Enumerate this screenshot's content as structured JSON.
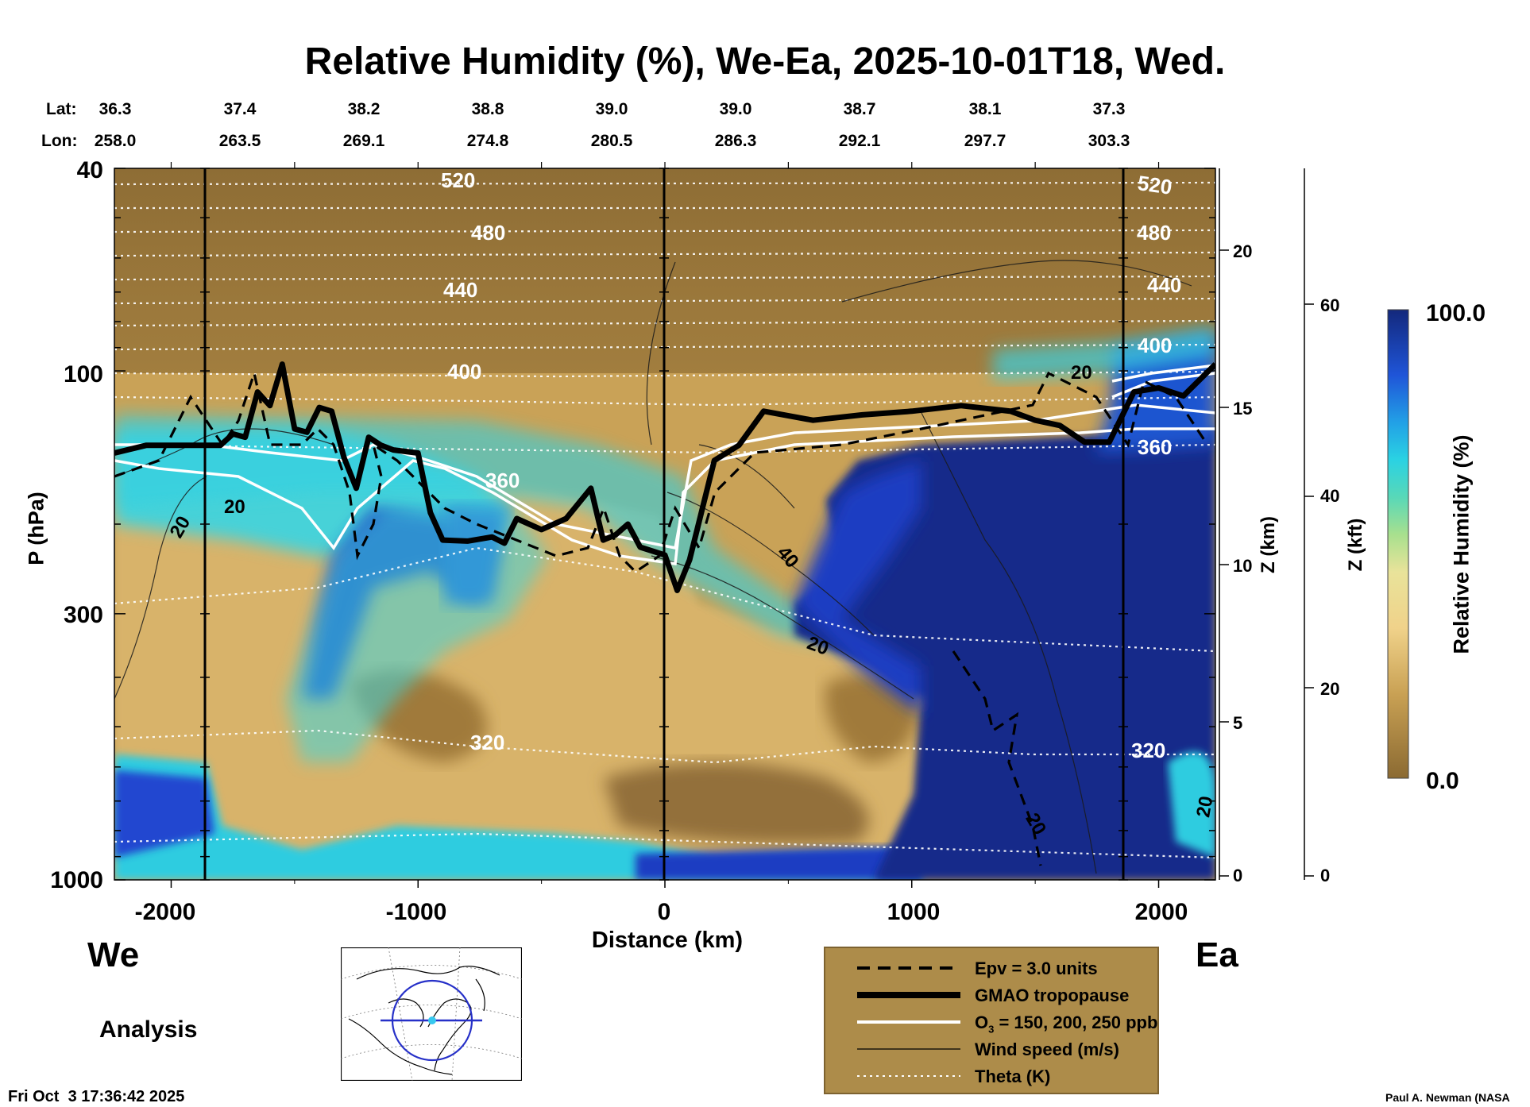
{
  "title": "Relative Humidity (%), We-Ea, 2025-10-01T18, Wed.",
  "lat_label": "Lat:",
  "lon_label": "Lon:",
  "lat_values": [
    "36.3",
    "37.4",
    "38.2",
    "38.8",
    "39.0",
    "39.0",
    "38.7",
    "38.1",
    "37.3"
  ],
  "lon_values": [
    "258.0",
    "263.5",
    "269.1",
    "274.8",
    "280.5",
    "286.3",
    "292.1",
    "297.7",
    "303.3"
  ],
  "y_axis_title": "P (hPa)",
  "x_axis_title": "Distance (km)",
  "z_km_title": "Z (km)",
  "z_kft_title": "Z (kft)",
  "colorbar_title": "Relative Humidity (%)",
  "colorbar_max": "100.0",
  "colorbar_min": "0.0",
  "west_label": "We",
  "east_label": "Ea",
  "analysis_label": "Analysis",
  "timestamp": "Fri Oct  3 17:36:42 2025",
  "credit": "Paul A. Newman (NASA",
  "legend": {
    "epv": "Epv = 3.0 units",
    "trop": "GMAO tropopause",
    "o3_prefix": "O",
    "o3_sub": "3",
    "o3_suffix": " = 150, 200, 250 ppb",
    "wind": "Wind speed (m/s)",
    "theta": "Theta (K)"
  },
  "colors": {
    "dry": "#8a6a33",
    "mid": "#d9b466",
    "moist_cyan": "#33d6e0",
    "wet": "#1f3fc8",
    "saturated": "#14277a",
    "legend_bg": "#ad8c4a"
  },
  "chart_data": {
    "type": "heatmap",
    "title": "Relative Humidity (%), We-Ea, 2025-10-01T18, Wed.",
    "xlabel": "Distance (km)",
    "ylabel": "P (hPa)",
    "xlim": [
      -2230,
      2230
    ],
    "ylim": [
      1000,
      40
    ],
    "y_scale": "log",
    "x_ticks": [
      "-2000",
      "-1000",
      "0",
      "1000",
      "2000"
    ],
    "y_ticks": [
      "40",
      "100",
      "300",
      "1000"
    ],
    "z_km_ticks": [
      "0",
      "5",
      "10",
      "15",
      "20"
    ],
    "z_kft_ticks": [
      "0",
      "20",
      "40",
      "60"
    ],
    "colorbar_range": [
      0.0,
      100.0
    ],
    "theta_labels": [
      "520",
      "480",
      "440",
      "400",
      "360",
      "320"
    ],
    "theta_labels_right": [
      "520",
      "480",
      "440",
      "400",
      "360",
      "320"
    ],
    "wind_labels": [
      "20",
      "20",
      "40",
      "20",
      "20",
      "20",
      "20"
    ],
    "tropopause": {
      "x": [
        -2230,
        -2100,
        -1900,
        -1800,
        -1750,
        -1700,
        -1650,
        -1600,
        -1550,
        -1500,
        -1450,
        -1400,
        -1350,
        -1300,
        -1250,
        -1200,
        -1150,
        -1100,
        -1000,
        -950,
        -900,
        -800,
        -700,
        -650,
        -600,
        -500,
        -400,
        -300,
        -250,
        -200,
        -150,
        -100,
        0,
        50,
        100,
        200,
        300,
        400,
        600,
        800,
        1000,
        1200,
        1400,
        1500,
        1600,
        1700,
        1800,
        1900,
        2000,
        2100,
        2230
      ],
      "p": [
        145,
        140,
        140,
        140,
        133,
        135,
        110,
        117,
        97,
        130,
        132,
        118,
        120,
        148,
        170,
        135,
        140,
        143,
        145,
        190,
        215,
        216,
        212,
        218,
        195,
        205,
        195,
        170,
        215,
        210,
        200,
        222,
        230,
        270,
        235,
        150,
        140,
        120,
        125,
        122,
        120,
        117,
        120,
        125,
        128,
        138,
        138,
        110,
        108,
        112,
        97
      ]
    }
  }
}
